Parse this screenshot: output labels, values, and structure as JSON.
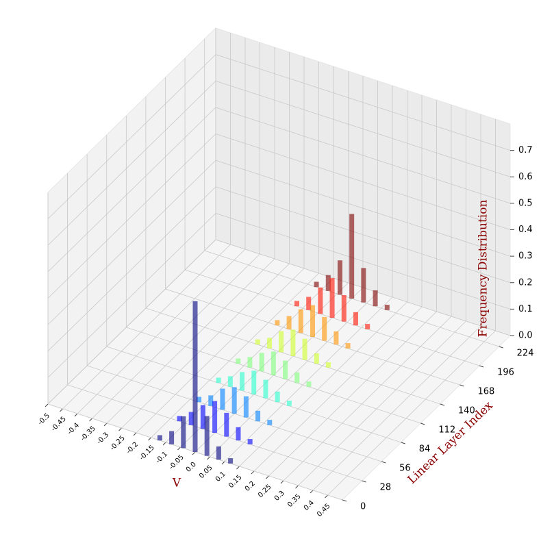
{
  "chart_data": {
    "type": "bar3d",
    "xlabel": "V",
    "ylabel": "Linear Layer Index",
    "zlabel": "Frequency Distribution",
    "xlim": [
      -0.5,
      0.5
    ],
    "xticks": [
      -0.5,
      -0.45,
      -0.4,
      -0.35,
      -0.3,
      -0.25,
      -0.2,
      -0.15,
      -0.1,
      -0.05,
      {
        "value": 0,
        "label": "0.0"
      },
      0.05,
      0.1,
      0.15,
      0.2,
      0.25,
      0.3,
      0.35,
      0.4,
      0.45
    ],
    "ylim": [
      0,
      240
    ],
    "yticks": [
      0,
      28,
      56,
      84,
      112,
      140,
      168,
      196,
      224
    ],
    "zlim": [
      0,
      0.8
    ],
    "zticks": [
      {
        "value": 0,
        "label": "0.0"
      },
      0.1,
      0.2,
      0.3,
      0.4,
      0.5,
      0.6,
      0.7
    ],
    "grid": true,
    "x": [
      -0.12,
      -0.08,
      -0.04,
      0,
      0.04,
      0.08,
      0.12
    ],
    "series": [
      {
        "layer": 0,
        "color": "#00007f",
        "values": [
          0.02,
          0.05,
          0.12,
          0.57,
          0.15,
          0.05,
          0.02
        ]
      },
      {
        "layer": 28,
        "color": "#0000ff",
        "values": [
          0.02,
          0.05,
          0.09,
          0.12,
          0.09,
          0.05,
          0.02
        ]
      },
      {
        "layer": 56,
        "color": "#0080ff",
        "values": [
          0.02,
          0.04,
          0.08,
          0.1,
          0.08,
          0.04,
          0.02
        ]
      },
      {
        "layer": 84,
        "color": "#29ffce",
        "values": [
          0.02,
          0.04,
          0.07,
          0.09,
          0.07,
          0.04,
          0.02
        ]
      },
      {
        "layer": 112,
        "color": "#7dff7a",
        "values": [
          0.02,
          0.04,
          0.07,
          0.09,
          0.07,
          0.04,
          0.02
        ]
      },
      {
        "layer": 140,
        "color": "#ceff29",
        "values": [
          0.02,
          0.04,
          0.08,
          0.1,
          0.08,
          0.04,
          0.02
        ]
      },
      {
        "layer": 168,
        "color": "#ff9400",
        "values": [
          0.02,
          0.05,
          0.09,
          0.12,
          0.09,
          0.05,
          0.02
        ]
      },
      {
        "layer": 196,
        "color": "#ff1300",
        "values": [
          0.02,
          0.05,
          0.1,
          0.15,
          0.1,
          0.05,
          0.02
        ]
      },
      {
        "layer": 224,
        "color": "#7f0000",
        "values": [
          0.02,
          0.06,
          0.13,
          0.32,
          0.13,
          0.06,
          0.02
        ]
      }
    ]
  }
}
